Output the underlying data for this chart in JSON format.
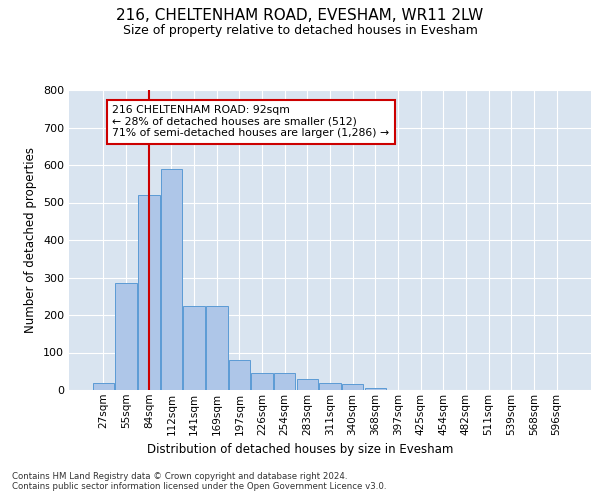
{
  "title_line1": "216, CHELTENHAM ROAD, EVESHAM, WR11 2LW",
  "title_line2": "Size of property relative to detached houses in Evesham",
  "xlabel": "Distribution of detached houses by size in Evesham",
  "ylabel": "Number of detached properties",
  "footer_line1": "Contains HM Land Registry data © Crown copyright and database right 2024.",
  "footer_line2": "Contains public sector information licensed under the Open Government Licence v3.0.",
  "bar_labels": [
    "27sqm",
    "55sqm",
    "84sqm",
    "112sqm",
    "141sqm",
    "169sqm",
    "197sqm",
    "226sqm",
    "254sqm",
    "283sqm",
    "311sqm",
    "340sqm",
    "368sqm",
    "397sqm",
    "425sqm",
    "454sqm",
    "482sqm",
    "511sqm",
    "539sqm",
    "568sqm",
    "596sqm"
  ],
  "bar_values": [
    20,
    285,
    520,
    590,
    225,
    225,
    80,
    45,
    45,
    30,
    20,
    15,
    5,
    0,
    0,
    0,
    0,
    0,
    0,
    0,
    0
  ],
  "bar_color": "#aec6e8",
  "bar_edge_color": "#5b9bd5",
  "property_line_x": 2.0,
  "annotation_text": "216 CHELTENHAM ROAD: 92sqm\n← 28% of detached houses are smaller (512)\n71% of semi-detached houses are larger (1,286) →",
  "annotation_box_color": "#ffffff",
  "annotation_box_edge": "#cc0000",
  "vline_color": "#cc0000",
  "ylim": [
    0,
    800
  ],
  "yticks": [
    0,
    100,
    200,
    300,
    400,
    500,
    600,
    700,
    800
  ],
  "plot_bg_color": "#d9e4f0",
  "grid_color": "#ffffff"
}
